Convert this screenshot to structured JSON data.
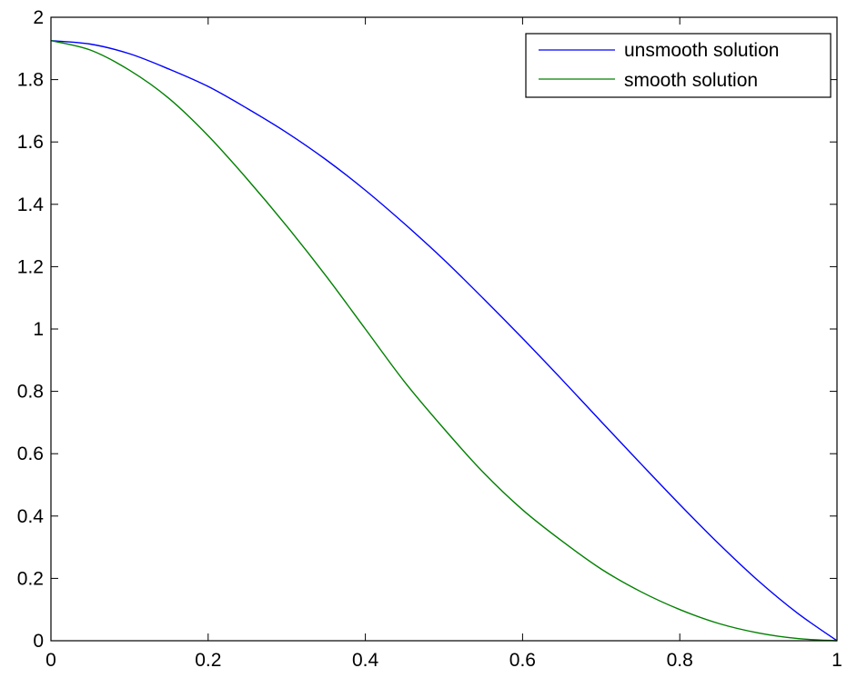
{
  "chart_data": {
    "type": "line",
    "title": "",
    "xlabel": "",
    "ylabel": "",
    "xlim": [
      0,
      1
    ],
    "ylim": [
      0,
      2
    ],
    "xticks": [
      0,
      0.2,
      0.4,
      0.6,
      0.8,
      1
    ],
    "xtick_labels": [
      "0",
      "0.2",
      "0.4",
      "0.6",
      "0.8",
      "1"
    ],
    "yticks": [
      0,
      0.2,
      0.4,
      0.6,
      0.8,
      1,
      1.2,
      1.4,
      1.6,
      1.8,
      2
    ],
    "ytick_labels": [
      "0",
      "0.2",
      "0.4",
      "0.6",
      "0.8",
      "1",
      "1.2",
      "1.4",
      "1.6",
      "1.8",
      "2"
    ],
    "grid": false,
    "legend_position": "top-right",
    "series": [
      {
        "name": "unsmooth solution",
        "color": "#0000ff",
        "x": [
          0,
          0.05,
          0.1,
          0.15,
          0.2,
          0.25,
          0.3,
          0.35,
          0.4,
          0.45,
          0.5,
          0.55,
          0.6,
          0.65,
          0.7,
          0.75,
          0.8,
          0.85,
          0.9,
          0.95,
          1
        ],
        "y": [
          1.925,
          1.914,
          1.883,
          1.834,
          1.778,
          1.707,
          1.63,
          1.543,
          1.445,
          1.337,
          1.222,
          1.098,
          0.97,
          0.838,
          0.703,
          0.569,
          0.437,
          0.31,
          0.192,
          0.088,
          0.0
        ]
      },
      {
        "name": "smooth solution",
        "color": "#008000",
        "x": [
          0,
          0.05,
          0.1,
          0.15,
          0.2,
          0.25,
          0.3,
          0.35,
          0.4,
          0.45,
          0.5,
          0.55,
          0.6,
          0.65,
          0.7,
          0.75,
          0.8,
          0.85,
          0.9,
          0.95,
          1
        ],
        "y": [
          1.925,
          1.895,
          1.83,
          1.74,
          1.62,
          1.48,
          1.33,
          1.17,
          1.0,
          0.83,
          0.68,
          0.54,
          0.42,
          0.32,
          0.23,
          0.158,
          0.1,
          0.055,
          0.025,
          0.007,
          0.0
        ]
      }
    ]
  }
}
